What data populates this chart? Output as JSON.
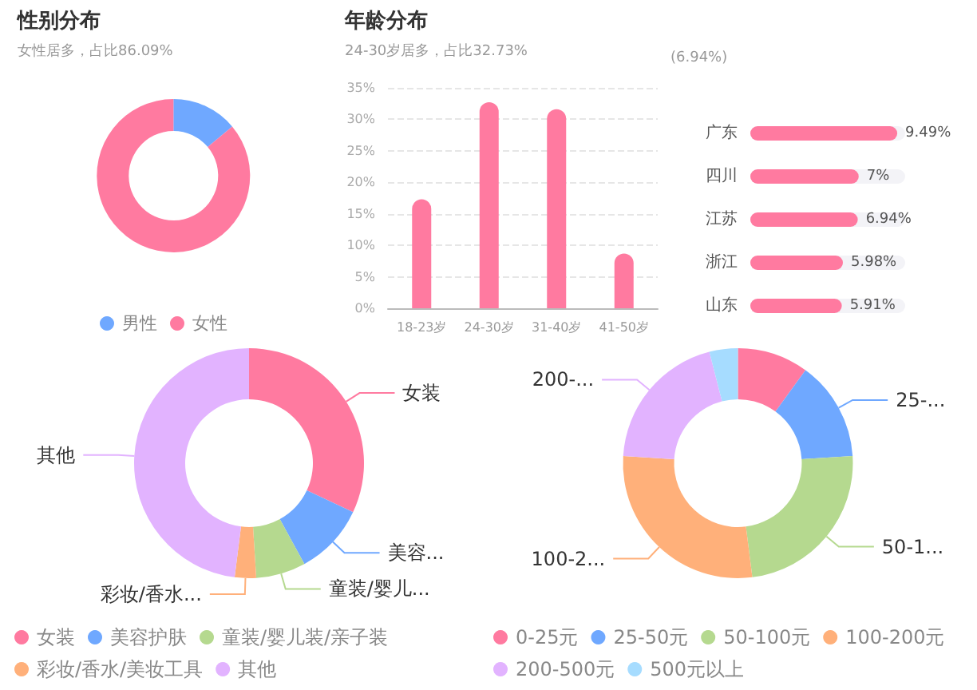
{
  "chart_data": [
    {
      "type": "donut",
      "title": "性别分布",
      "subtitle": "女性居多，占比86.09%",
      "categories": [
        "男性",
        "女性"
      ],
      "values": [
        13.91,
        86.09
      ],
      "colors": [
        "#6fa8ff",
        "#ff7aa0"
      ],
      "legend": "bottom"
    },
    {
      "type": "bar",
      "title": "年龄分布",
      "subtitle": "24-30岁居多，占比32.73%",
      "categories": [
        "18-23岁",
        "24-30岁",
        "31-40岁",
        "41-50岁"
      ],
      "values": [
        17.3,
        32.73,
        31.6,
        8.7
      ],
      "color": "#ff7aa0",
      "ylim": [
        0,
        35
      ],
      "yticks": [
        {
          "value": 0,
          "label": "0%"
        },
        {
          "value": 5,
          "label": "5%"
        },
        {
          "value": 10,
          "label": "10%"
        },
        {
          "value": 15,
          "label": "15%"
        },
        {
          "value": 20,
          "label": "20%"
        },
        {
          "value": 25,
          "label": "25%"
        },
        {
          "value": 30,
          "label": "30%"
        },
        {
          "value": 35,
          "label": "35%"
        }
      ],
      "grid": "y"
    },
    {
      "type": "bar",
      "orientation": "horizontal",
      "categories": [
        "广东",
        "四川",
        "江苏",
        "浙江",
        "山东"
      ],
      "values": [
        9.49,
        7,
        6.94,
        5.98,
        5.91
      ],
      "value_labels": [
        "9.49%",
        "7%",
        "6.94%",
        "5.98%",
        "5.91%"
      ],
      "color": "#ff7aa0",
      "annotations": [
        "(6.94%)"
      ]
    },
    {
      "type": "donut",
      "categories": [
        "女装",
        "美容护肤",
        "童装/婴儿装/亲子装",
        "彩妆/香水/美妆工具",
        "其他"
      ],
      "values": [
        32,
        10,
        7,
        3,
        48
      ],
      "colors": [
        "#ff7aa0",
        "#6fa8ff",
        "#b5d98f",
        "#ffb07a",
        "#e2b3ff"
      ],
      "legend": "bottom left",
      "annotations": [
        {
          "text": "女装",
          "x": "女装"
        },
        {
          "text": "美容...",
          "x": "美容护肤"
        },
        {
          "text": "童装/婴儿...",
          "x": "童装/婴儿装/亲子装"
        },
        {
          "text": "彩妆/香水...",
          "x": "彩妆/香水/美妆工具"
        },
        {
          "text": "其他",
          "x": "其他"
        }
      ]
    },
    {
      "type": "donut",
      "categories": [
        "0-25元",
        "25-50元",
        "50-100元",
        "100-200元",
        "200-500元",
        "500元以上"
      ],
      "values": [
        10,
        14,
        24,
        28,
        20,
        4
      ],
      "colors": [
        "#ff7aa0",
        "#6fa8ff",
        "#b5d98f",
        "#ffb07a",
        "#e2b3ff",
        "#a6dcff"
      ],
      "legend": "bottom left",
      "annotations": [
        {
          "text": "25-...",
          "x": "25-50元"
        },
        {
          "text": "50-1...",
          "x": "50-100元"
        },
        {
          "text": "100-2...",
          "x": "100-200元"
        },
        {
          "text": "200-...",
          "x": "200-500元"
        }
      ]
    }
  ]
}
